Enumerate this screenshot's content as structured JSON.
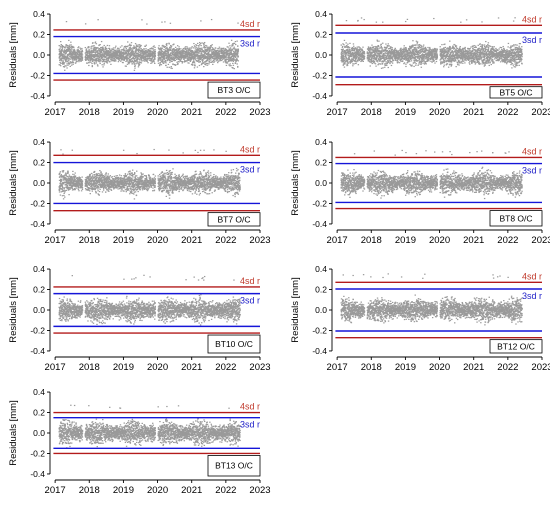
{
  "colors": {
    "residuals": "#9a9a9a",
    "sd4_line": "#b31b1b",
    "sd3_line": "#1515d8",
    "sd4_label": "#c0392b",
    "sd3_label": "#2020c8",
    "frame": "#000000"
  },
  "chart_data": [
    {
      "type": "scatter",
      "series": [
        {
          "name": "BT3 O/C",
          "kind": "residuals",
          "values_range": [
            -0.21,
            0.35
          ]
        }
      ],
      "xlabel": "",
      "ylabel": "Residuals [mm]",
      "xlim": [
        2016.85,
        2023.0
      ],
      "ylim": [
        -0.42,
        0.42
      ],
      "x_ticks": [
        2017,
        2018,
        2019,
        2020,
        2021,
        2022,
        2023
      ],
      "y_ticks": [
        0.4,
        0.2,
        0.0,
        -0.2,
        -0.4
      ],
      "y_tick_labels": [
        "0.4",
        "0.2",
        "0.0",
        "-0.2",
        "-0.4"
      ],
      "data_span": [
        2017.1,
        2022.35
      ],
      "sd3": 0.18,
      "sd4": 0.245,
      "sd3_label": "3sd r",
      "sd4_label": "4sd r",
      "grid": false
    },
    {
      "type": "scatter",
      "series": [
        {
          "name": "BT5 O/C",
          "kind": "residuals",
          "values_range": [
            -0.24,
            0.37
          ]
        }
      ],
      "xlabel": "",
      "ylabel": "Residuals [mm]",
      "xlim": [
        2016.85,
        2023.0
      ],
      "ylim": [
        -0.42,
        0.42
      ],
      "x_ticks": [
        2017,
        2018,
        2019,
        2020,
        2021,
        2022,
        2023
      ],
      "y_ticks": [
        0.4,
        0.2,
        0.0,
        -0.2,
        -0.4
      ],
      "y_tick_labels": [
        "0.4",
        "0.2",
        "0.0",
        "-0.2",
        "-0.4"
      ],
      "data_span": [
        2017.1,
        2022.4
      ],
      "sd3": 0.215,
      "sd4": 0.29,
      "sd3_label": "3sd r",
      "sd4_label": "4sd r",
      "grid": false
    },
    {
      "type": "scatter",
      "series": [
        {
          "name": "BT7 O/C",
          "kind": "residuals",
          "values_range": [
            -0.25,
            0.33
          ]
        }
      ],
      "xlabel": "",
      "ylabel": "Residuals [mm]",
      "xlim": [
        2016.85,
        2023.0
      ],
      "ylim": [
        -0.42,
        0.42
      ],
      "x_ticks": [
        2017,
        2018,
        2019,
        2020,
        2021,
        2022,
        2023
      ],
      "y_ticks": [
        0.4,
        0.2,
        0.0,
        -0.2,
        -0.4
      ],
      "y_tick_labels": [
        "0.4",
        "0.2",
        "0.0",
        "-0.2",
        "-0.4"
      ],
      "data_span": [
        2017.1,
        2022.4
      ],
      "sd3": 0.2,
      "sd4": 0.27,
      "sd3_label": "3sd r",
      "sd4_label": "4sd r",
      "grid": false
    },
    {
      "type": "scatter",
      "series": [
        {
          "name": "BT8 O/C",
          "kind": "residuals",
          "values_range": [
            -0.22,
            0.32
          ]
        }
      ],
      "xlabel": "",
      "ylabel": "Residuals [mm]",
      "xlim": [
        2016.85,
        2023.0
      ],
      "ylim": [
        -0.42,
        0.42
      ],
      "x_ticks": [
        2017,
        2018,
        2019,
        2020,
        2021,
        2022,
        2023
      ],
      "y_ticks": [
        0.4,
        0.2,
        0.0,
        -0.2,
        -0.4
      ],
      "y_tick_labels": [
        "0.4",
        "0.2",
        "0.0",
        "-0.2",
        "-0.4"
      ],
      "data_span": [
        2017.1,
        2022.4
      ],
      "sd3": 0.19,
      "sd4": 0.25,
      "sd3_label": "3sd r",
      "sd4_label": "4sd r",
      "grid": false
    },
    {
      "type": "scatter",
      "series": [
        {
          "name": "BT10 O/C",
          "kind": "residuals",
          "values_range": [
            -0.2,
            0.34
          ]
        }
      ],
      "xlabel": "",
      "ylabel": "Residuals [mm]",
      "xlim": [
        2016.85,
        2023.0
      ],
      "ylim": [
        -0.42,
        0.42
      ],
      "x_ticks": [
        2017,
        2018,
        2019,
        2020,
        2021,
        2022,
        2023
      ],
      "y_ticks": [
        0.4,
        0.2,
        0.0,
        -0.2,
        -0.4
      ],
      "y_tick_labels": [
        "0.4",
        "0.2",
        "0.0",
        "-0.2",
        "-0.4"
      ],
      "data_span": [
        2017.1,
        2022.4
      ],
      "sd3": 0.16,
      "sd4": 0.225,
      "sd3_label": "3sd r",
      "sd4_label": "4sd r",
      "grid": false
    },
    {
      "type": "scatter",
      "series": [
        {
          "name": "BT12 O/C",
          "kind": "residuals",
          "values_range": [
            -0.2,
            0.36
          ]
        }
      ],
      "xlabel": "",
      "ylabel": "Residuals [mm]",
      "xlim": [
        2016.85,
        2023.0
      ],
      "ylim": [
        -0.42,
        0.42
      ],
      "x_ticks": [
        2017,
        2018,
        2019,
        2020,
        2021,
        2022,
        2023
      ],
      "y_ticks": [
        0.4,
        0.2,
        0.0,
        -0.2,
        -0.4
      ],
      "y_tick_labels": [
        "0.4",
        "0.2",
        "0.0",
        "-0.2",
        "-0.4"
      ],
      "data_span": [
        2017.1,
        2022.4
      ],
      "sd3": 0.205,
      "sd4": 0.27,
      "sd3_label": "3sd r",
      "sd4_label": "4sd r",
      "grid": false
    },
    {
      "type": "scatter",
      "series": [
        {
          "name": "BT13 O/C",
          "kind": "residuals",
          "values_range": [
            -0.2,
            0.28
          ]
        }
      ],
      "xlabel": "",
      "ylabel": "Residuals [mm]",
      "xlim": [
        2016.85,
        2023.0
      ],
      "ylim": [
        -0.42,
        0.42
      ],
      "x_ticks": [
        2017,
        2018,
        2019,
        2020,
        2021,
        2022,
        2023
      ],
      "y_ticks": [
        0.4,
        0.2,
        0.0,
        -0.2,
        -0.4
      ],
      "y_tick_labels": [
        "0.4",
        "0.2",
        "0.0",
        "-0.2",
        "-0.4"
      ],
      "data_span": [
        2017.1,
        2022.4
      ],
      "sd3": 0.15,
      "sd4": 0.2,
      "sd3_label": "3sd r",
      "sd4_label": "4sd r",
      "grid": false
    }
  ]
}
